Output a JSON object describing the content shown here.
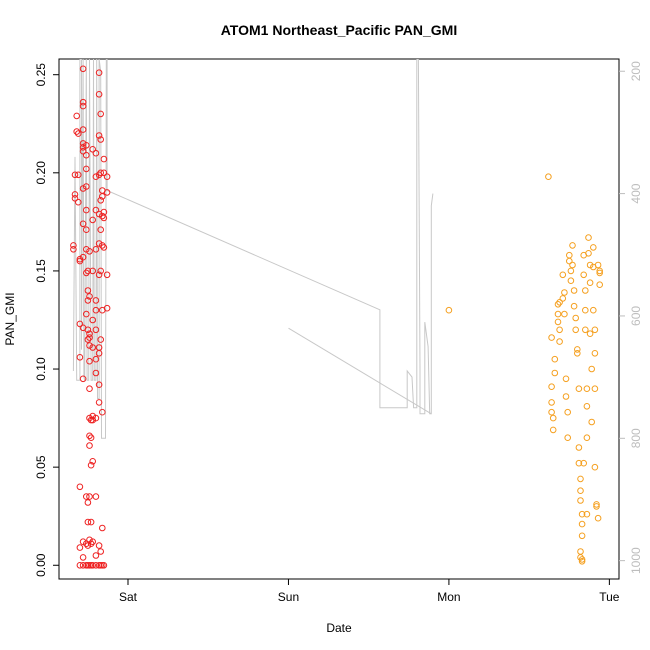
{
  "chart_data": {
    "type": "scatter",
    "title": "ATOM1 Northeast_Pacific PAN_GMI",
    "xlabel": "Date",
    "ylabel": "PAN_GMI",
    "x_tick_labels": [
      "Sat",
      "Sun",
      "Mon",
      "Tue"
    ],
    "x_ticks_days": [
      1,
      2,
      3,
      4
    ],
    "xlim_days": [
      0.57,
      4.06
    ],
    "ylim": [
      -0.007,
      0.258
    ],
    "y_ticks": [
      0.0,
      0.05,
      0.1,
      0.15,
      0.2,
      0.25
    ],
    "y_tick_labels": [
      "0.00",
      "0.05",
      "0.10",
      "0.15",
      "0.20",
      "0.25"
    ],
    "right_axis": {
      "ticks": [
        200,
        400,
        600,
        800,
        1000
      ],
      "tick_labels": [
        "200",
        "400",
        "600",
        "800",
        "1000"
      ],
      "range": [
        180,
        1030
      ],
      "inverted": true,
      "color": "#bdbdbd"
    },
    "colors": {
      "series1": "#ee2222",
      "series2": "#f5a020",
      "pressure_line": "#c8c8c8"
    },
    "series": [
      {
        "color": "#ee2222",
        "points": [
          [
            0.66,
            0.163
          ],
          [
            0.66,
            0.161
          ],
          [
            0.67,
            0.199
          ],
          [
            0.67,
            0.189
          ],
          [
            0.67,
            0.187
          ],
          [
            0.68,
            0.229
          ],
          [
            0.68,
            0.221
          ],
          [
            0.69,
            0.22
          ],
          [
            0.69,
            0.199
          ],
          [
            0.69,
            0.185
          ],
          [
            0.7,
            0.156
          ],
          [
            0.7,
            0.155
          ],
          [
            0.7,
            0.123
          ],
          [
            0.7,
            0.106
          ],
          [
            0.7,
            0.04
          ],
          [
            0.7,
            0.009
          ],
          [
            0.7,
            0.0
          ],
          [
            0.72,
            0.253
          ],
          [
            0.72,
            0.236
          ],
          [
            0.72,
            0.234
          ],
          [
            0.72,
            0.222
          ],
          [
            0.72,
            0.215
          ],
          [
            0.72,
            0.213
          ],
          [
            0.72,
            0.211
          ],
          [
            0.72,
            0.192
          ],
          [
            0.72,
            0.174
          ],
          [
            0.72,
            0.157
          ],
          [
            0.72,
            0.121
          ],
          [
            0.72,
            0.095
          ],
          [
            0.72,
            0.012
          ],
          [
            0.72,
            0.004
          ],
          [
            0.72,
            0.0
          ],
          [
            0.74,
            0.214
          ],
          [
            0.74,
            0.209
          ],
          [
            0.74,
            0.202
          ],
          [
            0.74,
            0.193
          ],
          [
            0.74,
            0.181
          ],
          [
            0.74,
            0.171
          ],
          [
            0.74,
            0.161
          ],
          [
            0.74,
            0.149
          ],
          [
            0.74,
            0.128
          ],
          [
            0.74,
            0.035
          ],
          [
            0.74,
            0.011
          ],
          [
            0.74,
            0.0
          ],
          [
            0.75,
            0.15
          ],
          [
            0.75,
            0.14
          ],
          [
            0.75,
            0.135
          ],
          [
            0.75,
            0.12
          ],
          [
            0.75,
            0.115
          ],
          [
            0.75,
            0.032
          ],
          [
            0.75,
            0.022
          ],
          [
            0.75,
            0.01
          ],
          [
            0.75,
            0.0
          ],
          [
            0.76,
            0.16
          ],
          [
            0.76,
            0.137
          ],
          [
            0.76,
            0.118
          ],
          [
            0.76,
            0.116
          ],
          [
            0.76,
            0.112
          ],
          [
            0.76,
            0.104
          ],
          [
            0.76,
            0.09
          ],
          [
            0.76,
            0.075
          ],
          [
            0.76,
            0.066
          ],
          [
            0.76,
            0.061
          ],
          [
            0.76,
            0.035
          ],
          [
            0.76,
            0.013
          ],
          [
            0.76,
            0.0
          ],
          [
            0.77,
            0.074
          ],
          [
            0.77,
            0.065
          ],
          [
            0.77,
            0.051
          ],
          [
            0.77,
            0.022
          ],
          [
            0.77,
            0.011
          ],
          [
            0.77,
            0.0
          ],
          [
            0.78,
            0.212
          ],
          [
            0.78,
            0.176
          ],
          [
            0.78,
            0.15
          ],
          [
            0.78,
            0.125
          ],
          [
            0.78,
            0.111
          ],
          [
            0.78,
            0.076
          ],
          [
            0.78,
            0.074
          ],
          [
            0.78,
            0.053
          ],
          [
            0.78,
            0.012
          ],
          [
            0.78,
            0.0
          ],
          [
            0.8,
            0.21
          ],
          [
            0.8,
            0.198
          ],
          [
            0.8,
            0.181
          ],
          [
            0.8,
            0.161
          ],
          [
            0.8,
            0.135
          ],
          [
            0.8,
            0.13
          ],
          [
            0.8,
            0.12
          ],
          [
            0.8,
            0.105
          ],
          [
            0.8,
            0.098
          ],
          [
            0.8,
            0.075
          ],
          [
            0.8,
            0.035
          ],
          [
            0.8,
            0.005
          ],
          [
            0.8,
            0.0
          ],
          [
            0.82,
            0.251
          ],
          [
            0.82,
            0.24
          ],
          [
            0.82,
            0.219
          ],
          [
            0.82,
            0.199
          ],
          [
            0.82,
            0.179
          ],
          [
            0.82,
            0.164
          ],
          [
            0.82,
            0.148
          ],
          [
            0.82,
            0.111
          ],
          [
            0.82,
            0.108
          ],
          [
            0.82,
            0.092
          ],
          [
            0.82,
            0.083
          ],
          [
            0.82,
            0.01
          ],
          [
            0.82,
            0.0
          ],
          [
            0.83,
            0.23
          ],
          [
            0.83,
            0.217
          ],
          [
            0.83,
            0.2
          ],
          [
            0.83,
            0.186
          ],
          [
            0.83,
            0.171
          ],
          [
            0.83,
            0.15
          ],
          [
            0.83,
            0.115
          ],
          [
            0.83,
            0.007
          ],
          [
            0.83,
            0.0
          ],
          [
            0.84,
            0.191
          ],
          [
            0.84,
            0.188
          ],
          [
            0.84,
            0.178
          ],
          [
            0.84,
            0.163
          ],
          [
            0.84,
            0.13
          ],
          [
            0.84,
            0.078
          ],
          [
            0.84,
            0.019
          ],
          [
            0.84,
            0.0
          ],
          [
            0.85,
            0.207
          ],
          [
            0.85,
            0.2
          ],
          [
            0.85,
            0.18
          ],
          [
            0.85,
            0.177
          ],
          [
            0.85,
            0.162
          ],
          [
            0.85,
            0.0
          ],
          [
            0.87,
            0.198
          ],
          [
            0.87,
            0.19
          ],
          [
            0.87,
            0.148
          ],
          [
            0.87,
            0.131
          ]
        ]
      },
      {
        "color": "#f5a020",
        "points": [
          [
            3.0,
            0.13
          ],
          [
            3.62,
            0.198
          ],
          [
            3.64,
            0.116
          ],
          [
            3.64,
            0.091
          ],
          [
            3.64,
            0.083
          ],
          [
            3.64,
            0.078
          ],
          [
            3.65,
            0.075
          ],
          [
            3.65,
            0.069
          ],
          [
            3.66,
            0.105
          ],
          [
            3.66,
            0.098
          ],
          [
            3.68,
            0.133
          ],
          [
            3.68,
            0.128
          ],
          [
            3.68,
            0.124
          ],
          [
            3.69,
            0.134
          ],
          [
            3.69,
            0.12
          ],
          [
            3.69,
            0.114
          ],
          [
            3.71,
            0.148
          ],
          [
            3.71,
            0.136
          ],
          [
            3.72,
            0.139
          ],
          [
            3.72,
            0.128
          ],
          [
            3.73,
            0.095
          ],
          [
            3.73,
            0.086
          ],
          [
            3.74,
            0.078
          ],
          [
            3.74,
            0.065
          ],
          [
            3.75,
            0.158
          ],
          [
            3.75,
            0.155
          ],
          [
            3.76,
            0.15
          ],
          [
            3.76,
            0.145
          ],
          [
            3.77,
            0.163
          ],
          [
            3.77,
            0.153
          ],
          [
            3.78,
            0.14
          ],
          [
            3.78,
            0.132
          ],
          [
            3.79,
            0.126
          ],
          [
            3.79,
            0.12
          ],
          [
            3.8,
            0.11
          ],
          [
            3.8,
            0.108
          ],
          [
            3.81,
            0.09
          ],
          [
            3.81,
            0.06
          ],
          [
            3.81,
            0.052
          ],
          [
            3.82,
            0.044
          ],
          [
            3.82,
            0.038
          ],
          [
            3.82,
            0.033
          ],
          [
            3.83,
            0.026
          ],
          [
            3.83,
            0.021
          ],
          [
            3.83,
            0.015
          ],
          [
            3.82,
            0.007
          ],
          [
            3.82,
            0.004
          ],
          [
            3.83,
            0.003
          ],
          [
            3.83,
            0.002
          ],
          [
            3.84,
            0.052
          ],
          [
            3.84,
            0.158
          ],
          [
            3.84,
            0.148
          ],
          [
            3.85,
            0.14
          ],
          [
            3.85,
            0.13
          ],
          [
            3.85,
            0.12
          ],
          [
            3.86,
            0.09
          ],
          [
            3.86,
            0.081
          ],
          [
            3.86,
            0.065
          ],
          [
            3.86,
            0.026
          ],
          [
            3.87,
            0.167
          ],
          [
            3.87,
            0.159
          ],
          [
            3.88,
            0.153
          ],
          [
            3.88,
            0.144
          ],
          [
            3.88,
            0.118
          ],
          [
            3.89,
            0.1
          ],
          [
            3.89,
            0.073
          ],
          [
            3.9,
            0.162
          ],
          [
            3.9,
            0.152
          ],
          [
            3.9,
            0.13
          ],
          [
            3.91,
            0.12
          ],
          [
            3.91,
            0.108
          ],
          [
            3.91,
            0.09
          ],
          [
            3.91,
            0.05
          ],
          [
            3.92,
            0.031
          ],
          [
            3.92,
            0.03
          ],
          [
            3.93,
            0.024
          ],
          [
            3.93,
            0.153
          ],
          [
            3.94,
            0.15
          ],
          [
            3.94,
            0.149
          ],
          [
            3.94,
            0.143
          ]
        ]
      }
    ],
    "pressure_line": {
      "color": "#c8c8c8",
      "segments": [
        [
          [
            0.66,
            690
          ],
          [
            0.67,
            340
          ],
          [
            0.68,
            705
          ],
          [
            0.7,
            705
          ],
          [
            0.7,
            180
          ],
          [
            0.71,
            180
          ],
          [
            0.71,
            655
          ],
          [
            0.72,
            180
          ],
          [
            0.725,
            700
          ],
          [
            0.73,
            705
          ],
          [
            0.74,
            180
          ],
          [
            0.745,
            705
          ],
          [
            0.755,
            705
          ],
          [
            0.76,
            180
          ],
          [
            0.77,
            705
          ],
          [
            0.78,
            705
          ],
          [
            0.785,
            180
          ],
          [
            0.79,
            705
          ],
          [
            0.8,
            705
          ],
          [
            0.805,
            180
          ],
          [
            0.81,
            735
          ],
          [
            0.82,
            735
          ],
          [
            0.82,
            180
          ],
          [
            0.83,
            200
          ],
          [
            0.835,
            800
          ],
          [
            0.86,
            800
          ],
          [
            0.865,
            180
          ],
          [
            0.87,
            180
          ],
          [
            0.87,
            395
          ],
          [
            2.57,
            590
          ],
          [
            2.57,
            750
          ],
          [
            2.74,
            750
          ],
          [
            2.74,
            690
          ],
          [
            2.77,
            700
          ],
          [
            2.78,
            750
          ],
          [
            2.8,
            750
          ],
          [
            2.8,
            180
          ],
          [
            2.81,
            180
          ],
          [
            2.82,
            690
          ],
          [
            2.82,
            760
          ],
          [
            2.85,
            760
          ],
          [
            2.85,
            610
          ],
          [
            2.87,
            650
          ],
          [
            2.88,
            760
          ],
          [
            2.89,
            760
          ],
          [
            2.89,
            420
          ],
          [
            2.9,
            400
          ]
        ],
        [
          [
            2.0,
            620
          ],
          [
            2.89,
            760
          ]
        ]
      ]
    }
  }
}
